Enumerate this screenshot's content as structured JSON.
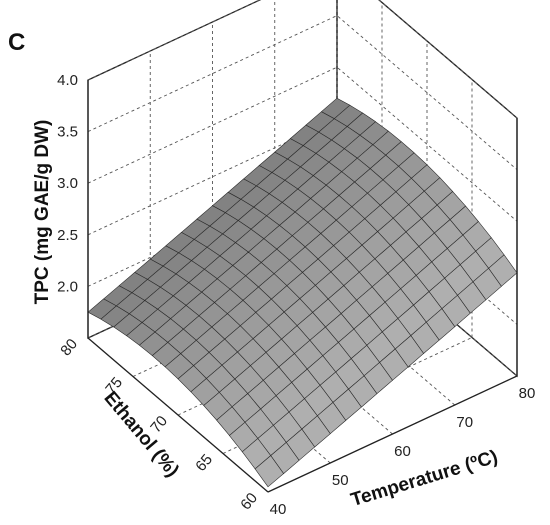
{
  "panel_label": "C",
  "chart_data": {
    "type": "surface3d",
    "title": "",
    "xlabel": "Temperature (ºC)",
    "ylabel": "Ethanol (%)",
    "zlabel": "TPC (mg GAE/g DW)",
    "xlim": [
      40,
      80
    ],
    "ylim": [
      60,
      80
    ],
    "zlim": [
      1.5,
      4.0
    ],
    "xticks": [
      "40",
      "50",
      "60",
      "70",
      "80"
    ],
    "yticks": [
      "60",
      "65",
      "70",
      "75",
      "80"
    ],
    "zticks": [
      "2.0",
      "2.5",
      "3.0",
      "3.5",
      "4.0"
    ],
    "grid": true,
    "surface_color": "#8c8c8c",
    "surface_points": [
      {
        "temperature": 40,
        "ethanol": 60,
        "tpc": 1.55
      },
      {
        "temperature": 40,
        "ethanol": 70,
        "tpc": 1.85
      },
      {
        "temperature": 40,
        "ethanol": 80,
        "tpc": 1.75
      },
      {
        "temperature": 60,
        "ethanol": 60,
        "tpc": 2.02
      },
      {
        "temperature": 60,
        "ethanol": 70,
        "tpc": 2.32
      },
      {
        "temperature": 60,
        "ethanol": 80,
        "tpc": 2.22
      },
      {
        "temperature": 80,
        "ethanol": 60,
        "tpc": 2.5
      },
      {
        "temperature": 80,
        "ethanol": 70,
        "tpc": 2.8
      },
      {
        "temperature": 80,
        "ethanol": 80,
        "tpc": 2.7
      }
    ]
  }
}
